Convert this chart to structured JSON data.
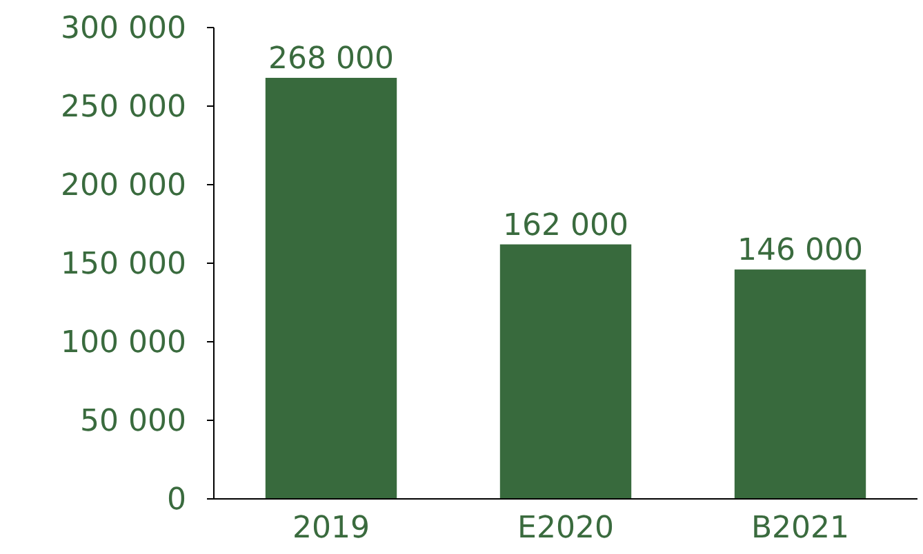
{
  "chart_data": {
    "type": "bar",
    "categories": [
      "2019",
      "E2020",
      "B2021"
    ],
    "values": [
      268000,
      162000,
      146000
    ],
    "color": "#386a3d",
    "value_labels": [
      "268 000",
      "162 000",
      "146 000"
    ],
    "ylim": [
      0,
      300000
    ],
    "yticks": [
      {
        "value": 0,
        "label": "0"
      },
      {
        "value": 50000,
        "label": "50 000"
      },
      {
        "value": 100000,
        "label": "100 000"
      },
      {
        "value": 150000,
        "label": "150 000"
      },
      {
        "value": 200000,
        "label": "200 000"
      },
      {
        "value": 250000,
        "label": "250 000"
      },
      {
        "value": 300000,
        "label": "300 000"
      }
    ],
    "grid": false
  }
}
